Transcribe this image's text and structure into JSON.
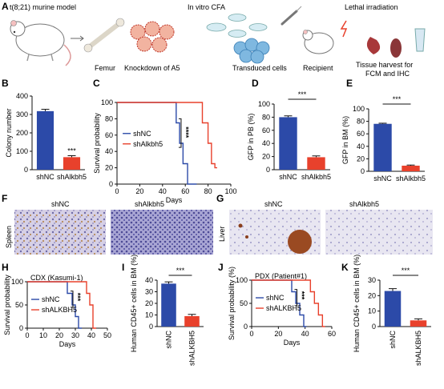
{
  "colors": {
    "blue": "#2c4aa8",
    "red": "#e8412c",
    "axis": "#111111"
  },
  "panel_letters": [
    "A",
    "B",
    "C",
    "D",
    "E",
    "F",
    "G",
    "H",
    "I",
    "J",
    "K"
  ],
  "workflow": {
    "model_label": "t(8;21) murine model",
    "cfa_label": "In vitro CFA",
    "irradiation_label": "Lethal irradiation",
    "femur_label": "Femur",
    "knockdown_label": "Knockdown of A5",
    "transduced_label": "Transduced cells",
    "recipient_label": "Recipient",
    "harvest_label_1": "Tissue harvest for",
    "harvest_label_2": "FCM and IHC"
  },
  "histology": {
    "F": {
      "row_label": "Spleen",
      "col1": "shNC",
      "col2": "shAlkbh5"
    },
    "G": {
      "row_label": "Liver",
      "col1": "shNC",
      "col2": "shAlkbh5"
    }
  },
  "chart_data": [
    {
      "panel": "B",
      "type": "bar",
      "categories": [
        "shNC",
        "shAlkbh5"
      ],
      "values": [
        318,
        68
      ],
      "errors": [
        10,
        8
      ],
      "ylabel": "Colony number",
      "ylim": [
        0,
        400
      ],
      "yticks": [
        0,
        100,
        200,
        300,
        400
      ],
      "annotation": "***"
    },
    {
      "panel": "C",
      "type": "line",
      "step": true,
      "xlabel": "Days",
      "ylabel": "Survival probability",
      "xlim": [
        0,
        100
      ],
      "xticks": [
        0,
        20,
        40,
        60,
        80,
        100
      ],
      "ylim": [
        0,
        100
      ],
      "yticks": [
        0,
        20,
        40,
        60,
        80,
        100
      ],
      "annotation": "****",
      "legend_position": "center",
      "series": [
        {
          "name": "shNC",
          "x": [
            0,
            48,
            52,
            55,
            58,
            62,
            70
          ],
          "y": [
            100,
            100,
            75,
            50,
            25,
            0,
            0
          ]
        },
        {
          "name": "shAlkbh5",
          "x": [
            0,
            72,
            75,
            80,
            83,
            86,
            88
          ],
          "y": [
            100,
            100,
            75,
            50,
            25,
            20,
            20
          ]
        }
      ]
    },
    {
      "panel": "D",
      "type": "bar",
      "categories": [
        "shNC",
        "shAlkbh5"
      ],
      "values": [
        80,
        19
      ],
      "errors": [
        2,
        2
      ],
      "ylabel": "GFP in PB (%)",
      "ylim": [
        0,
        100
      ],
      "yticks": [
        0,
        20,
        40,
        60,
        80,
        100
      ],
      "annotation": "***"
    },
    {
      "panel": "E",
      "type": "bar",
      "categories": [
        "shNC",
        "shAlkbh5"
      ],
      "values": [
        76,
        9
      ],
      "errors": [
        1,
        1
      ],
      "ylabel": "GFP in BM (%)",
      "ylim": [
        0,
        100
      ],
      "yticks": [
        0,
        20,
        40,
        60,
        80,
        100
      ],
      "annotation": "***"
    },
    {
      "panel": "H",
      "type": "line",
      "step": true,
      "subtitle": "CDX (Kasumi-1)",
      "xlabel": "Days",
      "ylabel": "Survival probability",
      "xlim": [
        0,
        50
      ],
      "xticks": [
        0,
        10,
        20,
        30,
        40,
        50
      ],
      "ylim": [
        0,
        100
      ],
      "yticks": [
        0,
        50,
        100
      ],
      "annotation": "***",
      "legend_position": "center",
      "series": [
        {
          "name": "shNC",
          "x": [
            0,
            22,
            25,
            28,
            30,
            32,
            34
          ],
          "y": [
            100,
            100,
            75,
            50,
            25,
            0,
            0
          ]
        },
        {
          "name": "shALKBH5",
          "x": [
            0,
            34,
            37,
            39,
            41,
            43
          ],
          "y": [
            100,
            100,
            75,
            50,
            0,
            0
          ]
        }
      ]
    },
    {
      "panel": "I",
      "type": "bar",
      "categories": [
        "shNC",
        "shALKBH5"
      ],
      "values": [
        37,
        9
      ],
      "errors": [
        1.5,
        1.5
      ],
      "ylabel": "Human CD45+ cells in BM (%)",
      "ylim": [
        0,
        40
      ],
      "yticks": [
        0,
        10,
        20,
        30,
        40
      ],
      "annotation": "***"
    },
    {
      "panel": "J",
      "type": "line",
      "step": true,
      "subtitle": "PDX (Patient#1)",
      "xlabel": "Days",
      "ylabel": "Survival probability (%)",
      "xlim": [
        0,
        60
      ],
      "xticks": [
        0,
        20,
        40,
        60
      ],
      "ylim": [
        0,
        100
      ],
      "yticks": [
        0,
        50,
        100
      ],
      "annotation": "***",
      "legend_position": "center",
      "series": [
        {
          "name": "shNC",
          "x": [
            0,
            26,
            30,
            33,
            36,
            39,
            41
          ],
          "y": [
            100,
            100,
            75,
            50,
            25,
            0,
            0
          ]
        },
        {
          "name": "shALKBH5",
          "x": [
            0,
            40,
            44,
            47,
            50,
            53,
            55
          ],
          "y": [
            100,
            100,
            75,
            50,
            25,
            0,
            0
          ]
        }
      ]
    },
    {
      "panel": "K",
      "type": "bar",
      "categories": [
        "shNC",
        "shALKBH5"
      ],
      "values": [
        23,
        4
      ],
      "errors": [
        1.5,
        1
      ],
      "ylabel": "Human CD45+ cells in BM (%)",
      "ylim": [
        0,
        30
      ],
      "yticks": [
        0,
        10,
        20,
        30
      ],
      "annotation": "***"
    }
  ]
}
